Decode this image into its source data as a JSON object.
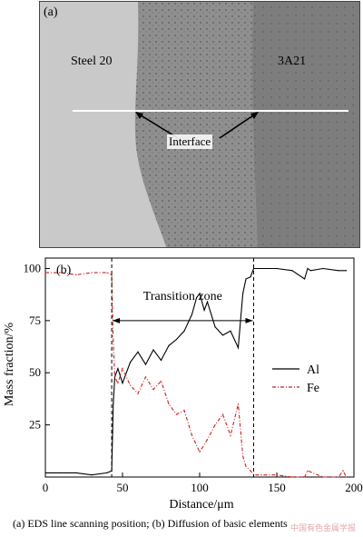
{
  "panel_a": {
    "tag": "(a)",
    "steel_label": "Steel 20",
    "al_label": "3A21",
    "interface_label": "Interface"
  },
  "panel_b": {
    "tag": "(b)"
  },
  "chart_data": {
    "type": "line",
    "xlabel": "Distance/μm",
    "ylabel": "Mass fraction/%",
    "xlim": [
      0,
      200
    ],
    "ylim": [
      0,
      105
    ],
    "xticks": [
      0,
      50,
      100,
      150,
      200
    ],
    "yticks": [
      25,
      50,
      75,
      100
    ],
    "annotation": "Transition zone",
    "transition_zone": [
      43,
      135
    ],
    "legend_position": "right",
    "series": [
      {
        "name": "Al",
        "color": "#000000",
        "style": "solid",
        "x": [
          0,
          10,
          20,
          30,
          40,
          43,
          44,
          45,
          47,
          50,
          55,
          60,
          65,
          70,
          75,
          80,
          85,
          90,
          95,
          98,
          100,
          103,
          105,
          110,
          115,
          120,
          125,
          128,
          130,
          133,
          135,
          140,
          150,
          160,
          168,
          170,
          172,
          180,
          190,
          195
        ],
        "y": [
          2,
          2,
          2,
          1,
          2,
          3,
          35,
          48,
          52,
          45,
          55,
          60,
          54,
          61,
          56,
          63,
          66,
          70,
          78,
          86,
          88,
          80,
          84,
          72,
          68,
          70,
          62,
          88,
          95,
          96,
          100,
          100,
          100,
          99,
          95,
          100,
          99,
          100,
          99,
          99
        ]
      },
      {
        "name": "Fe",
        "color": "#cc2222",
        "style": "dashdot",
        "x": [
          0,
          10,
          20,
          30,
          40,
          43,
          44,
          45,
          47,
          50,
          55,
          60,
          65,
          70,
          75,
          80,
          85,
          90,
          95,
          100,
          105,
          110,
          115,
          120,
          125,
          128,
          130,
          133,
          135,
          140,
          150,
          160,
          168,
          170,
          180,
          190,
          193,
          195
        ],
        "y": [
          98,
          98,
          97,
          98,
          98,
          97,
          65,
          48,
          45,
          52,
          44,
          40,
          48,
          42,
          46,
          35,
          30,
          32,
          20,
          12,
          18,
          25,
          30,
          20,
          35,
          10,
          5,
          3,
          1,
          1,
          1,
          0,
          0,
          3,
          0,
          0,
          3,
          0
        ]
      }
    ]
  },
  "caption": "(a) EDS line scanning position;  (b) Diffusion of basic elements",
  "watermark": "中国有色金属学报"
}
